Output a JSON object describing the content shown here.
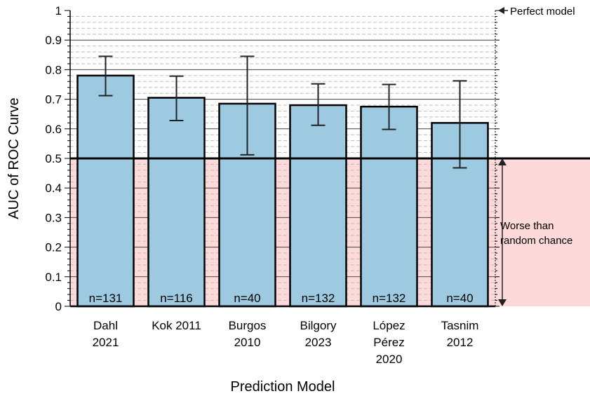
{
  "chart_data": {
    "type": "bar",
    "title": "",
    "xlabel": "Prediction Model",
    "ylabel": "AUC of ROC Curve",
    "ylim": [
      0,
      1
    ],
    "yticks": [
      "0",
      "0.1",
      "0.2",
      "0.3",
      "0.4",
      "0.5",
      "0.6",
      "0.7",
      "0.8",
      "0.9",
      "1"
    ],
    "grid": true,
    "categories": [
      [
        "Dahl",
        "2021"
      ],
      [
        "Kok 2011"
      ],
      [
        "Burgos",
        "2010"
      ],
      [
        "Bilgory",
        "2023"
      ],
      [
        "López",
        "Pérez",
        "2020"
      ],
      [
        "Tasnim",
        "2012"
      ]
    ],
    "values": [
      0.78,
      0.705,
      0.685,
      0.68,
      0.675,
      0.62
    ],
    "error_low": [
      0.712,
      0.628,
      0.512,
      0.612,
      0.598,
      0.468
    ],
    "error_high": [
      0.845,
      0.778,
      0.845,
      0.752,
      0.75,
      0.762
    ],
    "n_labels": [
      "n=131",
      "n=116",
      "n=40",
      "n=132",
      "n=132",
      "n=40"
    ],
    "reference_line": 0.5,
    "annotations": {
      "perfect": "Perfect model",
      "worse_line1": "Worse than",
      "worse_line2": "random chance"
    },
    "colors": {
      "bar": "#9ecae1",
      "below_chance_band": "#fdd9d9",
      "line": "#000000",
      "grid": "#000000"
    }
  }
}
